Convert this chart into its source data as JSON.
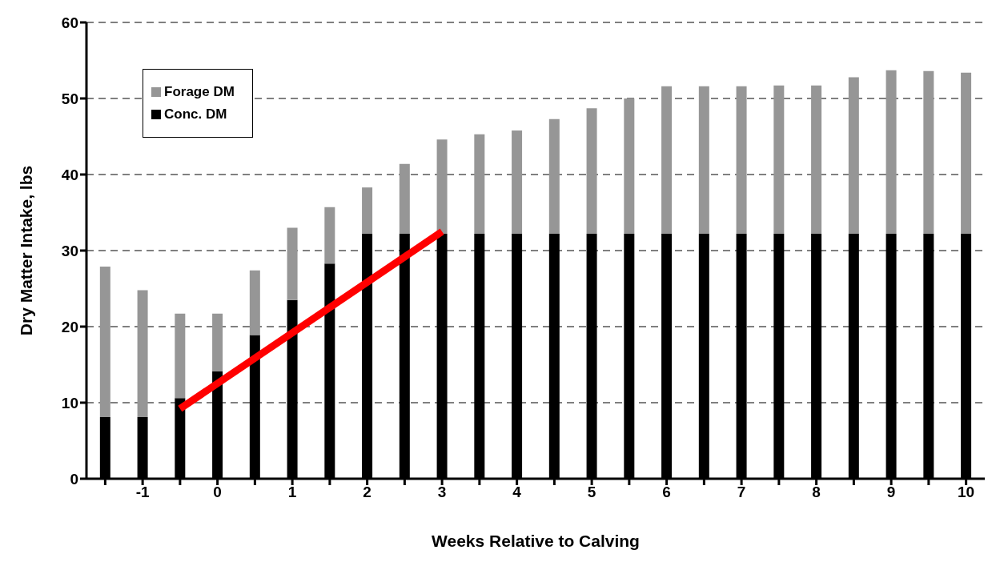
{
  "chart_data": {
    "type": "bar",
    "stacked": true,
    "xlabel": "Weeks Relative to Calving",
    "ylabel": "Dry Matter Intake, lbs",
    "categories": [
      null,
      "-1",
      null,
      "0",
      null,
      "1",
      null,
      "2",
      null,
      "3",
      null,
      "4",
      null,
      "5",
      null,
      "6",
      null,
      "7",
      null,
      "8",
      null,
      "9",
      null,
      "10"
    ],
    "series": [
      {
        "name": "Conc. DM",
        "color": "#000000",
        "values": [
          8.1,
          8.1,
          10.6,
          14.1,
          18.9,
          23.5,
          28.3,
          32.2,
          32.2,
          32.2,
          32.2,
          32.2,
          32.2,
          32.2,
          32.2,
          32.2,
          32.2,
          32.2,
          32.2,
          32.2,
          32.2,
          32.2,
          32.2,
          32.2
        ]
      },
      {
        "name": "Forage DM",
        "color": "#969696",
        "values": [
          19.8,
          16.7,
          11.1,
          7.6,
          8.5,
          9.5,
          7.4,
          6.1,
          9.2,
          12.4,
          13.1,
          13.6,
          15.1,
          16.5,
          17.8,
          19.4,
          19.4,
          19.4,
          19.5,
          19.5,
          20.6,
          21.5,
          21.4,
          21.2
        ]
      },
      {
        "type": "line",
        "color": "#ff0000",
        "values": [
          null,
          null,
          9.2,
          null,
          null,
          null,
          null,
          null,
          null,
          32.5,
          null,
          null,
          null,
          null,
          null,
          null,
          null,
          null,
          null,
          null,
          null,
          null,
          null,
          null
        ]
      }
    ],
    "ylim": [
      0,
      60
    ],
    "yticks": [
      0,
      10,
      20,
      30,
      40,
      50,
      60
    ],
    "grid": "y",
    "legend": "top left",
    "marker": "none"
  }
}
